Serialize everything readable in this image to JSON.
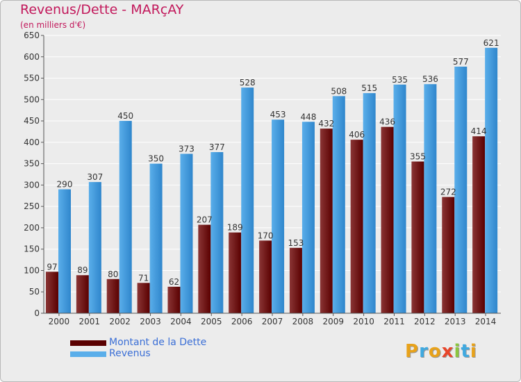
{
  "title": "Revenus/Dette - MARçAY",
  "unit_label": "(en milliers d'€)",
  "colors": {
    "dette_dark": "#5a0000",
    "dette_light": "#8a3535",
    "revenus_dark": "#2f86cc",
    "revenus_light": "#5aaeea",
    "grid": "#ffffff",
    "title": "#c2185b"
  },
  "legend": {
    "dette_label": "Montant de la Dette",
    "revenus_label": "Revenus"
  },
  "logo": {
    "letters": [
      "P",
      "r",
      "o",
      "x",
      "i",
      "t",
      "i"
    ],
    "colors": [
      "#e8a21a",
      "#3fa9e0",
      "#e8a21a",
      "#e8452a",
      "#8cc63f",
      "#3fa9e0",
      "#e8a21a"
    ]
  },
  "chart_data": {
    "type": "bar",
    "title": "Revenus/Dette - MARçAY",
    "xlabel": "",
    "ylabel": "(en milliers d'€)",
    "ylim": [
      0,
      650
    ],
    "yticks": [
      0,
      50,
      100,
      150,
      200,
      250,
      300,
      350,
      400,
      450,
      500,
      550,
      600,
      650
    ],
    "grid": true,
    "legend_position": "bottom-left",
    "categories": [
      "2000",
      "2001",
      "2002",
      "2003",
      "2004",
      "2005",
      "2006",
      "2007",
      "2008",
      "2009",
      "2010",
      "2011",
      "2012",
      "2013",
      "2014"
    ],
    "series": [
      {
        "name": "Montant de la Dette",
        "values": [
          97,
          89,
          80,
          71,
          62,
          207,
          189,
          170,
          153,
          432,
          406,
          436,
          355,
          272,
          414
        ]
      },
      {
        "name": "Revenus",
        "values": [
          290,
          307,
          450,
          350,
          373,
          377,
          528,
          453,
          448,
          508,
          515,
          535,
          536,
          577,
          621
        ]
      }
    ]
  }
}
